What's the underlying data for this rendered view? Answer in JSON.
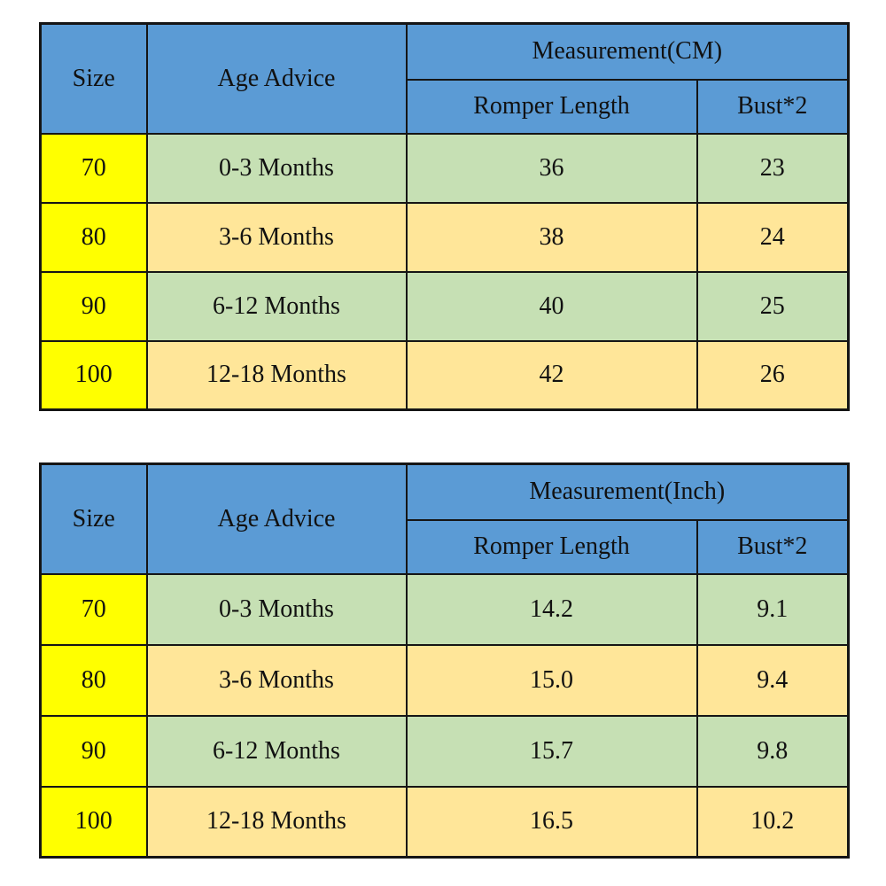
{
  "colors": {
    "header_blue": "#5b9bd5",
    "size_yellow": "#ffff00",
    "row_green": "#c6e0b4",
    "row_tan": "#ffe699",
    "border_black": "#151515",
    "background": "#ffffff"
  },
  "tables": [
    {
      "unit_header": "Measurement(CM)",
      "col_headers": {
        "size": "Size",
        "age": "Age Advice",
        "romper": "Romper Length",
        "bust": "Bust*2"
      },
      "rows": [
        {
          "size": "70",
          "age": "0-3 Months",
          "romper": "36",
          "bust": "23"
        },
        {
          "size": "80",
          "age": "3-6 Months",
          "romper": "38",
          "bust": "24"
        },
        {
          "size": "90",
          "age": "6-12 Months",
          "romper": "40",
          "bust": "25"
        },
        {
          "size": "100",
          "age": "12-18 Months",
          "romper": "42",
          "bust": "26"
        }
      ]
    },
    {
      "unit_header": "Measurement(Inch)",
      "col_headers": {
        "size": "Size",
        "age": "Age Advice",
        "romper": "Romper Length",
        "bust": "Bust*2"
      },
      "rows": [
        {
          "size": "70",
          "age": "0-3 Months",
          "romper": "14.2",
          "bust": "9.1"
        },
        {
          "size": "80",
          "age": "3-6 Months",
          "romper": "15.0",
          "bust": "9.4"
        },
        {
          "size": "90",
          "age": "6-12 Months",
          "romper": "15.7",
          "bust": "9.8"
        },
        {
          "size": "100",
          "age": "12-18 Months",
          "romper": "16.5",
          "bust": "10.2"
        }
      ]
    }
  ],
  "chart_data": [
    {
      "type": "table",
      "title": "Measurement(CM)",
      "columns": [
        "Size",
        "Age Advice",
        "Romper Length",
        "Bust*2"
      ],
      "rows": [
        [
          "70",
          "0-3 Months",
          36,
          23
        ],
        [
          "80",
          "3-6 Months",
          38,
          24
        ],
        [
          "90",
          "6-12 Months",
          40,
          25
        ],
        [
          "100",
          "12-18 Months",
          42,
          26
        ]
      ]
    },
    {
      "type": "table",
      "title": "Measurement(Inch)",
      "columns": [
        "Size",
        "Age Advice",
        "Romper Length",
        "Bust*2"
      ],
      "rows": [
        [
          "70",
          "0-3 Months",
          14.2,
          9.1
        ],
        [
          "80",
          "3-6 Months",
          15.0,
          9.4
        ],
        [
          "90",
          "6-12 Months",
          15.7,
          9.8
        ],
        [
          "100",
          "12-18 Months",
          16.5,
          10.2
        ]
      ]
    }
  ]
}
